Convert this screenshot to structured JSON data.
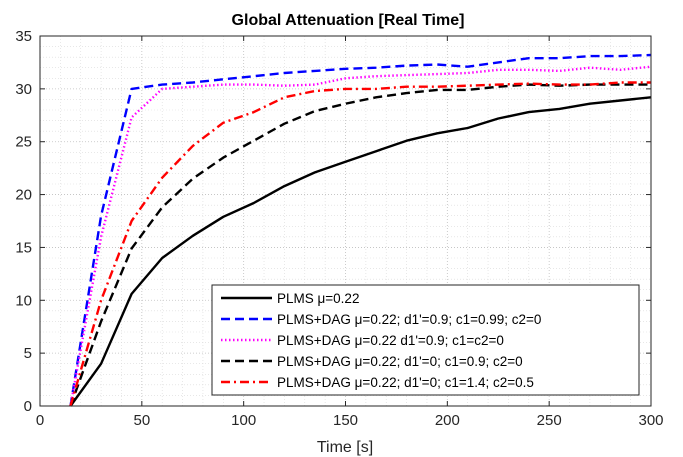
{
  "chart_data": {
    "type": "line",
    "title": "Global Attenuation [Real Time]",
    "xlabel": "Time [s]",
    "ylabel": "",
    "xlim": [
      0,
      300
    ],
    "ylim": [
      0,
      35
    ],
    "xticks": [
      0,
      50,
      100,
      150,
      200,
      250,
      300
    ],
    "yticks": [
      0,
      5,
      10,
      15,
      20,
      25,
      30,
      35
    ],
    "grid": true,
    "minor_grid": true,
    "legend_position": "bottom-right",
    "series": [
      {
        "name": "PLMS μ=0.22",
        "color": "#000000",
        "linestyle": "solid",
        "x": [
          15,
          30,
          45,
          60,
          75,
          90,
          105,
          120,
          135,
          150,
          165,
          180,
          195,
          210,
          225,
          240,
          255,
          270,
          285,
          300
        ],
        "y": [
          0,
          4,
          10.6,
          14,
          16.1,
          17.9,
          19.2,
          20.8,
          22.1,
          23.1,
          24.1,
          25.1,
          25.8,
          26.3,
          27.2,
          27.8,
          28.1,
          28.6,
          28.9,
          29.2
        ]
      },
      {
        "name": "PLMS+DAG  μ=0.22; d1'=0.9; c1=0.99; c2=0",
        "color": "#0000ff",
        "linestyle": "dashed",
        "x": [
          15,
          30,
          45,
          60,
          75,
          90,
          105,
          120,
          135,
          150,
          165,
          180,
          195,
          210,
          225,
          240,
          255,
          270,
          285,
          300
        ],
        "y": [
          0,
          18,
          30,
          30.4,
          30.6,
          30.9,
          31.2,
          31.5,
          31.7,
          31.9,
          32.0,
          32.2,
          32.3,
          32.1,
          32.5,
          32.9,
          32.9,
          33.1,
          33.1,
          33.2
        ]
      },
      {
        "name": "PLMS+DAG  μ=0.22 d1'=0.9; c1=c2=0",
        "color": "#ff00ff",
        "linestyle": "dotted",
        "x": [
          15,
          30,
          45,
          60,
          75,
          90,
          105,
          120,
          135,
          150,
          165,
          180,
          195,
          210,
          225,
          240,
          255,
          270,
          285,
          300
        ],
        "y": [
          0,
          16,
          27.3,
          30,
          30.2,
          30.4,
          30.4,
          30.3,
          30.4,
          31.0,
          31.2,
          31.3,
          31.4,
          31.5,
          31.8,
          31.8,
          31.7,
          32.0,
          31.8,
          32.1
        ]
      },
      {
        "name": "PLMS+DAG  μ=0.22; d1'=0; c1=0.9; c2=0",
        "color": "#000000",
        "linestyle": "dashed",
        "x": [
          15,
          30,
          45,
          60,
          75,
          90,
          105,
          120,
          135,
          150,
          165,
          180,
          195,
          210,
          225,
          240,
          255,
          270,
          285,
          300
        ],
        "y": [
          0,
          8,
          14.9,
          18.8,
          21.5,
          23.5,
          25.1,
          26.7,
          27.9,
          28.6,
          29.2,
          29.6,
          29.9,
          29.9,
          30.2,
          30.4,
          30.3,
          30.4,
          30.4,
          30.4
        ]
      },
      {
        "name": "PLMS+DAG  μ=0.22; d1'=0; c1=1.4; c2=0.5",
        "color": "#ff0000",
        "linestyle": "dashdot",
        "x": [
          15,
          30,
          45,
          60,
          75,
          90,
          105,
          120,
          135,
          150,
          165,
          180,
          195,
          210,
          225,
          240,
          255,
          270,
          285,
          300
        ],
        "y": [
          0,
          10,
          17.5,
          21.6,
          24.6,
          26.8,
          27.8,
          29.2,
          29.8,
          30.0,
          30.0,
          30.2,
          30.2,
          30.3,
          30.4,
          30.5,
          30.4,
          30.4,
          30.6,
          30.6
        ]
      }
    ]
  }
}
